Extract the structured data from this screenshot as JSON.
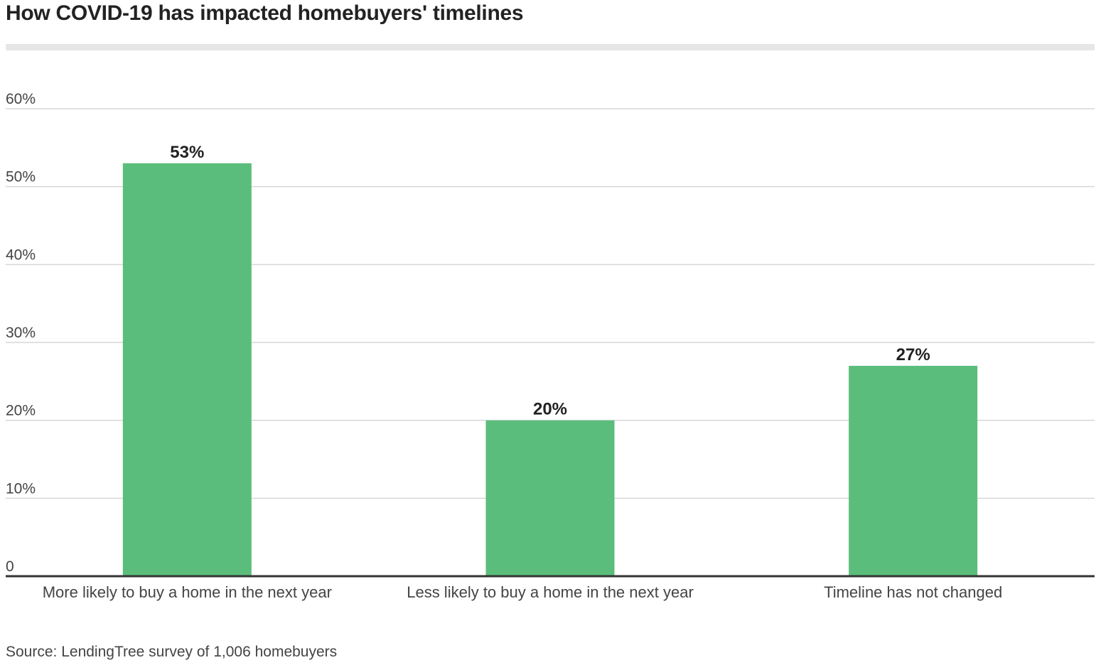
{
  "title": "How COVID-19 has impacted homebuyers' timelines",
  "source": "Source: LendingTree survey of 1,006 homebuyers",
  "colors": {
    "bar": "#5bbd7b",
    "grid": "#d6d6d6",
    "axis": "#333333",
    "tick_text": "#444444",
    "label_text": "#222222"
  },
  "chart_data": {
    "type": "bar",
    "categories": [
      "More likely to buy a home in the next year",
      "Less likely to buy a home in the next year",
      "Timeline has not changed"
    ],
    "values": [
      53,
      20,
      27
    ],
    "data_labels": [
      "53%",
      "20%",
      "27%"
    ],
    "yticks": [
      0,
      10,
      20,
      30,
      40,
      50,
      60
    ],
    "ytick_labels": [
      "0",
      "10%",
      "20%",
      "30%",
      "40%",
      "50%",
      "60%"
    ],
    "ylim": [
      0,
      60
    ],
    "grid": true,
    "legend": "none",
    "xlabel": "",
    "ylabel": ""
  }
}
